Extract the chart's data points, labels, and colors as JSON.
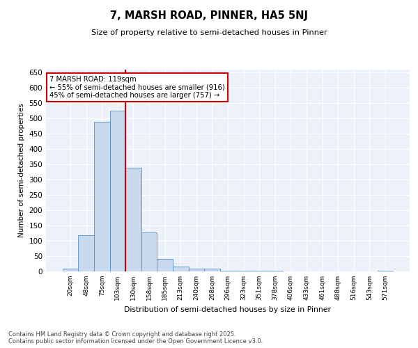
{
  "title": "7, MARSH ROAD, PINNER, HA5 5NJ",
  "subtitle": "Size of property relative to semi-detached houses in Pinner",
  "xlabel": "Distribution of semi-detached houses by size in Pinner",
  "ylabel": "Number of semi-detached properties",
  "categories": [
    "20sqm",
    "48sqm",
    "75sqm",
    "103sqm",
    "130sqm",
    "158sqm",
    "185sqm",
    "213sqm",
    "240sqm",
    "268sqm",
    "296sqm",
    "323sqm",
    "351sqm",
    "378sqm",
    "406sqm",
    "433sqm",
    "461sqm",
    "488sqm",
    "516sqm",
    "543sqm",
    "571sqm"
  ],
  "values": [
    10,
    118,
    490,
    525,
    340,
    128,
    40,
    15,
    8,
    8,
    2,
    2,
    2,
    2,
    0,
    0,
    0,
    0,
    0,
    0,
    3
  ],
  "bar_color": "#c8d9ed",
  "bar_edge_color": "#5a8fc4",
  "vline_x_index": 3,
  "vline_color": "#cc0000",
  "annotation_title": "7 MARSH ROAD: 119sqm",
  "annotation_line1": "← 55% of semi-detached houses are smaller (916)",
  "annotation_line2": "45% of semi-detached houses are larger (757) →",
  "annotation_box_color": "#cc0000",
  "ylim": [
    0,
    660
  ],
  "yticks": [
    0,
    50,
    100,
    150,
    200,
    250,
    300,
    350,
    400,
    450,
    500,
    550,
    600,
    650
  ],
  "background_color": "#edf2fa",
  "footer_line1": "Contains HM Land Registry data © Crown copyright and database right 2025.",
  "footer_line2": "Contains public sector information licensed under the Open Government Licence v3.0."
}
